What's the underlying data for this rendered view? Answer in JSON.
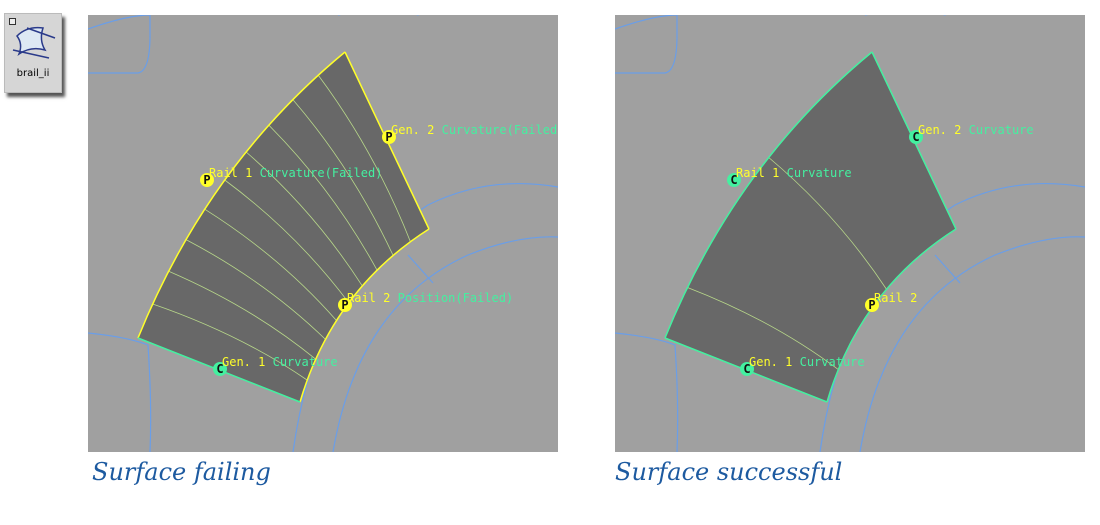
{
  "tool": {
    "label": "brail_ii",
    "icon": "birail-surface-icon"
  },
  "panels": [
    {
      "caption": "Surface failing",
      "edge_color": "#ffff2a",
      "isoparms": 9,
      "labels": [
        {
          "marker": "P",
          "a": "Gen. 2",
          "b": "Curvature(Failed)"
        },
        {
          "marker": "P",
          "a": "Rail 1",
          "b": "Curvature(Failed)"
        },
        {
          "marker": "P",
          "a": "Rail 2",
          "b": "Position(Failed)"
        },
        {
          "marker": "C",
          "a": "Gen. 1",
          "b": "Curvature"
        }
      ]
    },
    {
      "caption": "Surface successful",
      "edge_color": "#44f0a0",
      "isoparms": 2,
      "labels": [
        {
          "marker": "C",
          "a": "Gen. 2",
          "b": "Curvature"
        },
        {
          "marker": "C",
          "a": "Rail 1",
          "b": "Curvature"
        },
        {
          "marker": "P",
          "a": "Rail 2",
          "b": ""
        },
        {
          "marker": "C",
          "a": "Gen. 1",
          "b": "Curvature"
        }
      ]
    }
  ]
}
